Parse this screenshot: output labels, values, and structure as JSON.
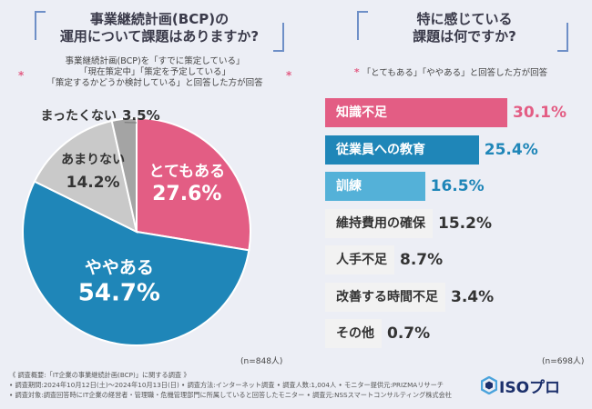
{
  "left": {
    "question_line1": "事業継続計画(BCP)の",
    "question_line2": "運用について課題はありますか?",
    "note_line1": "事業継続計画(BCP)を「すでに策定している」",
    "note_line2": "「現在策定中」「策定を予定している」",
    "note_line3": "「策定するかどうか検討している」と回答した方が回答",
    "n_label": "(n=848人)"
  },
  "right": {
    "question_line1": "特に感じている",
    "question_line2": "課題は何ですか?",
    "note": "「とてもある」「ややある」と回答した方が回答",
    "n_label": "(n=698人)"
  },
  "footer": {
    "line1": "《 調査概要:「IT企業の事業継続計画(BCP)」に関する調査 》",
    "line2": "• 調査期間:2024年10月12日(土)〜2024年10月13日(日)  • 調査方法:インターネット調査  • 調査人数:1,004人  • モニター提供元:PRIZMAリサーチ",
    "line3": "• 調査対象:調査回答時にIT企業の経営者・管理職・危機管理部門に所属していると回答したモニター  • 調査元:NSSスマートコンサルティング株式会社"
  },
  "logo": {
    "text": "ISOプロ"
  },
  "colors": {
    "pink": "#e35d84",
    "blue": "#1f86b8",
    "lightblue": "#54b1d8",
    "gray": "#a4a4a4",
    "lightgray": "#c9c9c9",
    "barbg": "#f2f2f2"
  },
  "chart_data": [
    {
      "type": "pie",
      "title": "事業継続計画(BCP)の運用について課題はありますか?",
      "categories": [
        "とてもある",
        "ややある",
        "あまりない",
        "まったくない"
      ],
      "values": [
        27.6,
        54.7,
        14.2,
        3.5
      ],
      "value_labels": [
        "27.6%",
        "54.7%",
        "14.2%",
        "3.5%"
      ],
      "unit": "%"
    },
    {
      "type": "bar",
      "orientation": "horizontal",
      "title": "特に感じている課題は何ですか?",
      "categories": [
        "知識不足",
        "従業員への教育",
        "訓練",
        "維持費用の確保",
        "人手不足",
        "改善する時間不足",
        "その他"
      ],
      "values": [
        30.1,
        25.4,
        16.5,
        15.2,
        8.7,
        3.4,
        0.7
      ],
      "value_labels": [
        "30.1%",
        "25.4%",
        "16.5%",
        "15.2%",
        "8.7%",
        "3.4%",
        "0.7%"
      ],
      "unit": "%"
    }
  ]
}
